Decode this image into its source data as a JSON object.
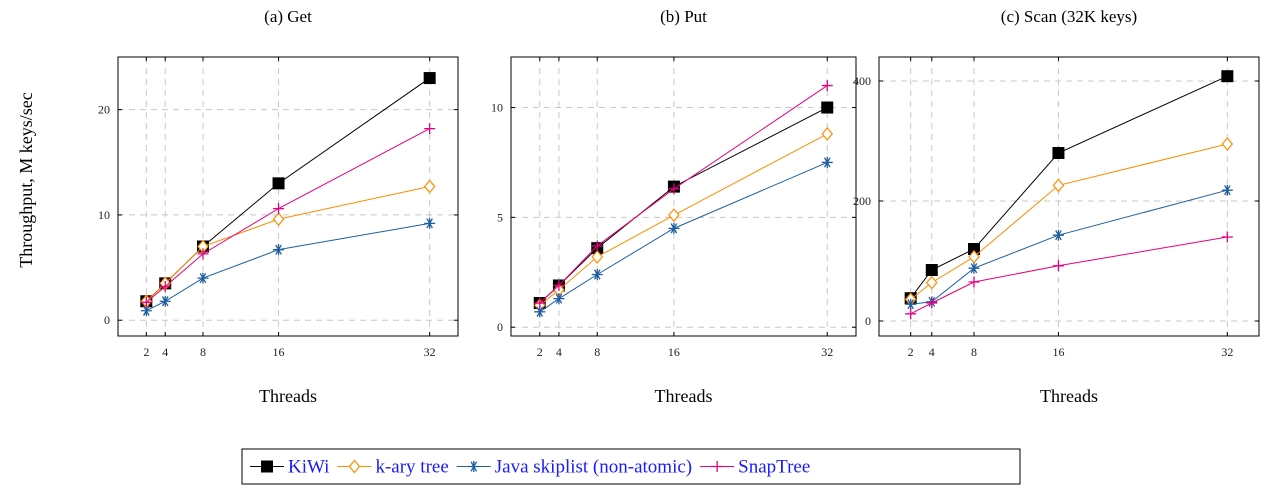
{
  "ylabel": "Throughput, M keys/sec",
  "xlabel": "Threads",
  "legend": {
    "placement": "bottom-center",
    "entries": [
      {
        "name": "KiWi",
        "color": "#000000",
        "marker": "square"
      },
      {
        "name": "k-ary tree",
        "color": "#ff8c00",
        "marker": "diamond"
      },
      {
        "name": "Java skiplist (non-atomic)",
        "color": "#1f5f9f",
        "marker": "asterisk"
      },
      {
        "name": "SnapTree",
        "color": "#e6007e",
        "marker": "plus"
      }
    ]
  },
  "chart_data": [
    {
      "type": "line",
      "title": "(a) Get",
      "xlabel": "Threads",
      "ylabel": "Throughput, M keys/sec",
      "x": [
        2,
        4,
        8,
        16,
        32
      ],
      "xticks": [
        "2",
        "4",
        "8",
        "16",
        "32"
      ],
      "xlim": [
        -1,
        35
      ],
      "ylim": [
        -1.5,
        25
      ],
      "yticks": [
        0,
        10,
        20
      ],
      "grid": true,
      "series": [
        {
          "name": "KiWi",
          "values": [
            1.8,
            3.5,
            7.0,
            13.0,
            23.0
          ]
        },
        {
          "name": "k-ary tree",
          "values": [
            1.8,
            3.5,
            7.0,
            9.6,
            12.7
          ]
        },
        {
          "name": "Java skiplist (non-atomic)",
          "values": [
            0.9,
            1.8,
            4.0,
            6.7,
            9.2
          ]
        },
        {
          "name": "SnapTree",
          "values": [
            1.7,
            3.2,
            6.3,
            10.6,
            18.2
          ]
        }
      ]
    },
    {
      "type": "line",
      "title": "(b) Put",
      "xlabel": "Threads",
      "x": [
        2,
        4,
        8,
        16,
        32
      ],
      "xticks": [
        "2",
        "4",
        "8",
        "16",
        "32"
      ],
      "xlim": [
        -1,
        35
      ],
      "ylim": [
        -0.4,
        12.3
      ],
      "yticks": [
        0,
        5,
        10
      ],
      "grid": true,
      "series": [
        {
          "name": "KiWi",
          "values": [
            1.1,
            1.9,
            3.6,
            6.4,
            10.0
          ]
        },
        {
          "name": "k-ary tree",
          "values": [
            1.0,
            1.7,
            3.2,
            5.1,
            8.8
          ]
        },
        {
          "name": "Java skiplist (non-atomic)",
          "values": [
            0.7,
            1.3,
            2.4,
            4.5,
            7.5
          ]
        },
        {
          "name": "SnapTree",
          "values": [
            1.1,
            1.9,
            3.7,
            6.3,
            11.0
          ]
        }
      ]
    },
    {
      "type": "line",
      "title": "(c) Scan (32K keys)",
      "xlabel": "Threads",
      "x": [
        2,
        4,
        8,
        16,
        32
      ],
      "xticks": [
        "2",
        "4",
        "8",
        "16",
        "32"
      ],
      "xlim": [
        -1,
        35
      ],
      "ylim": [
        -25,
        440
      ],
      "yticks": [
        0,
        200,
        400
      ],
      "grid": true,
      "series": [
        {
          "name": "KiWi",
          "values": [
            38,
            85,
            120,
            280,
            408
          ]
        },
        {
          "name": "k-ary tree",
          "values": [
            36,
            64,
            107,
            226,
            295
          ]
        },
        {
          "name": "Java skiplist (non-atomic)",
          "values": [
            28,
            32,
            88,
            143,
            218
          ]
        },
        {
          "name": "SnapTree",
          "values": [
            12,
            30,
            65,
            92,
            140
          ]
        }
      ]
    }
  ]
}
